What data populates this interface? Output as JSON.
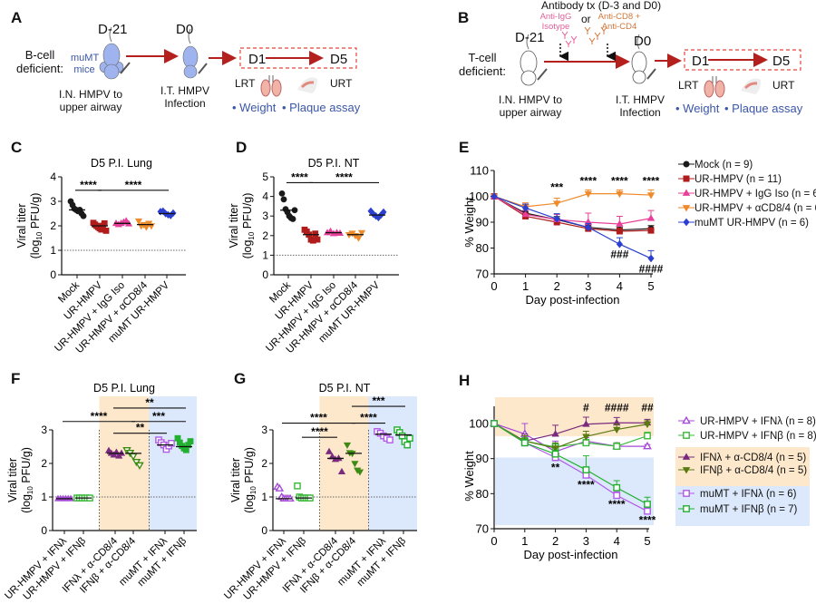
{
  "panel_labels": [
    "A",
    "B",
    "C",
    "D",
    "E",
    "F",
    "G",
    "H"
  ],
  "schematic_a": {
    "group_label_1": "B-cell",
    "group_label_2": "deficient:",
    "mice_label_1": "muMT",
    "mice_label_2": "mice",
    "day_start": "D-21",
    "day_infect": "D0",
    "step1_1": "I.N. HMPV to",
    "step1_2": "upper airway",
    "step2_1": "I.T. HMPV",
    "step2_2": "Infection",
    "window_start": "D1",
    "window_end": "D5",
    "lrt": "LRT",
    "urt": "URT",
    "readout_1": "• Weight",
    "readout_2": "• Plaque assay",
    "mouse_color": "#9fb4ee"
  },
  "schematic_b": {
    "antibody_title": "Antibody tx (D-3 and D0)",
    "iso_1": "Anti-IgG",
    "iso_2": "Isotype",
    "or": "or",
    "cd_1": "Anti-CD8 +",
    "cd_2": "Anti-CD4",
    "group_label_1": "T-cell",
    "group_label_2": "deficient:",
    "day_start": "D-21",
    "day_infect": "D0",
    "step1_1": "I.N. HMPV to",
    "step1_2": "upper airway",
    "step2_1": "I.T. HMPV",
    "step2_2": "Infection",
    "window_start": "D1",
    "window_end": "D5",
    "lrt": "LRT",
    "urt": "URT",
    "readout_1": "• Weight",
    "readout_2": "• Plaque assay",
    "iso_color": "#e0609a",
    "cd_color": "#d2773a"
  },
  "chart_data": [
    {
      "panel": "C",
      "type": "scatter",
      "title": "D5 P.I. Lung",
      "ylabel": "Viral titer",
      "ylabel_unit": [
        "(log",
        "10",
        " PFU/g)"
      ],
      "ylim": [
        0,
        4
      ],
      "yticks": [
        "0",
        "1",
        "2",
        "3",
        "4"
      ],
      "limit_of_detection": 1,
      "categories": [
        "Mock",
        "UR-HMPV",
        "UR-HMPV + IgG Iso",
        "UR-HMPV + αCD8/4",
        "muMT UR-HMPV"
      ],
      "groups": [
        {
          "color": "#1a1a1a",
          "marker": "circle",
          "filled": true,
          "points": [
            3.0,
            2.85,
            2.7,
            2.65,
            2.6,
            2.65,
            2.5,
            2.4
          ],
          "median": 2.65
        },
        {
          "color": "#b01c1c",
          "marker": "square",
          "filled": true,
          "points": [
            2.12,
            2.05,
            2.0,
            1.95,
            1.9,
            1.85,
            2.0,
            2.1,
            1.8
          ],
          "median": 2.0
        },
        {
          "color": "#e8409a",
          "marker": "triangle",
          "filled": true,
          "points": [
            2.1,
            2.05,
            2.1,
            2.15,
            2.2,
            2.08
          ],
          "median": 2.1
        },
        {
          "color": "#ee8a2a",
          "marker": "triangle-down",
          "filled": true,
          "points": [
            2.2,
            2.0,
            2.05,
            1.95,
            2.1,
            2.0
          ],
          "median": 2.05
        },
        {
          "color": "#2b3fd0",
          "marker": "diamond",
          "filled": true,
          "points": [
            2.58,
            2.6,
            2.5,
            2.45,
            2.42,
            2.52
          ],
          "median": 2.5
        }
      ],
      "significance": [
        {
          "from": 0,
          "to": 1,
          "y": 3.45,
          "label": "****"
        },
        {
          "from": 1,
          "to": 4,
          "y": 3.45,
          "label": "****"
        }
      ]
    },
    {
      "panel": "D",
      "type": "scatter",
      "title": "D5 P.I. NT",
      "ylabel": "Viral titer",
      "ylabel_unit": [
        "(log",
        "10",
        " PFU/g)"
      ],
      "ylim": [
        0,
        5
      ],
      "yticks": [
        "0",
        "1",
        "2",
        "3",
        "4",
        "5"
      ],
      "limit_of_detection": 1,
      "categories": [
        "Mock",
        "UR-HMPV",
        "UR-HMPV + IgG Iso",
        "UR-HMPV + αCD8/4",
        "muMT UR-HMPV"
      ],
      "groups": [
        {
          "color": "#1a1a1a",
          "marker": "circle",
          "filled": true,
          "points": [
            4.15,
            3.85,
            3.35,
            3.2,
            3.0,
            2.9,
            2.85,
            3.3
          ],
          "median": 3.3
        },
        {
          "color": "#b01c1c",
          "marker": "square",
          "filled": true,
          "points": [
            2.3,
            2.2,
            2.05,
            1.8,
            1.75,
            2.1,
            1.8
          ],
          "median": 2.05
        },
        {
          "color": "#e8409a",
          "marker": "triangle",
          "filled": true,
          "points": [
            2.15,
            2.22,
            2.1,
            2.15,
            2.12
          ],
          "median": 2.15
        },
        {
          "color": "#ee8a2a",
          "marker": "triangle-down",
          "filled": true,
          "points": [
            2.05,
            2.12,
            2.0,
            1.88,
            2.15
          ],
          "median": 2.05
        },
        {
          "color": "#2b3fd0",
          "marker": "diamond",
          "filled": true,
          "points": [
            3.25,
            3.1,
            3.0,
            2.92,
            3.05,
            3.2
          ],
          "median": 3.05
        }
      ],
      "significance": [
        {
          "from": 0,
          "to": 1,
          "y": 4.7,
          "label": "****"
        },
        {
          "from": 1,
          "to": 4,
          "y": 4.7,
          "label": "****"
        }
      ]
    },
    {
      "panel": "E",
      "type": "line",
      "xlabel": "Day post-infection",
      "ylabel": "% Weight",
      "x": [
        0,
        1,
        2,
        3,
        4,
        5
      ],
      "xticks": [
        "0",
        "1",
        "2",
        "3",
        "4",
        "5"
      ],
      "ylim": [
        70,
        110
      ],
      "yticks": [
        "70",
        "80",
        "90",
        "100",
        "110"
      ],
      "series": [
        {
          "label": "Mock (n = 9)",
          "color": "#1a1a1a",
          "marker": "circle",
          "filled": true,
          "values": [
            100,
            93.5,
            91,
            88,
            87,
            87.5
          ],
          "errors": [
            0,
            1,
            1.2,
            1,
            1,
            1.2
          ]
        },
        {
          "label": "UR-HMPV (n = 11)",
          "color": "#b01c1c",
          "marker": "square",
          "filled": true,
          "values": [
            100,
            92.3,
            90,
            87.5,
            86.5,
            86.8
          ],
          "errors": [
            0,
            1.2,
            1.5,
            1,
            1.2,
            1
          ]
        },
        {
          "label": "UR-HMPV + IgG Iso (n = 6)",
          "color": "#e8409a",
          "marker": "triangle",
          "filled": true,
          "values": [
            100,
            93,
            91,
            90,
            89.3,
            91.5
          ],
          "errors": [
            0,
            1.5,
            2,
            3.5,
            3,
            3
          ]
        },
        {
          "label": "UR-HMPV + αCD8/4 (n = 6)",
          "color": "#ee8a2a",
          "marker": "triangle-down",
          "filled": true,
          "values": [
            100,
            96,
            97.3,
            101,
            101,
            100.5
          ],
          "errors": [
            0,
            1.5,
            2,
            1.5,
            1.5,
            2
          ]
        },
        {
          "label": "muMT UR-HMPV (n = 6)",
          "color": "#2b3fd0",
          "marker": "diamond",
          "filled": true,
          "values": [
            100,
            95.5,
            91.3,
            88,
            81.5,
            76
          ],
          "errors": [
            0,
            1.5,
            2,
            1.5,
            2.5,
            3
          ]
        }
      ],
      "annotations": [
        {
          "x": 2,
          "y": 103.5,
          "text": "***"
        },
        {
          "x": 3,
          "y": 106,
          "text": "****"
        },
        {
          "x": 4,
          "y": 106,
          "text": "****"
        },
        {
          "x": 5,
          "y": 106,
          "text": "****"
        },
        {
          "x": 4,
          "y": 77.5,
          "text": "###"
        },
        {
          "x": 5,
          "y": 72,
          "text": "####"
        }
      ],
      "legend": "right"
    },
    {
      "panel": "F",
      "type": "scatter",
      "title": "D5 P.I. Lung",
      "ylabel": "Viral titer",
      "ylabel_unit": [
        "(log",
        "10",
        " PFU/g)"
      ],
      "ylim": [
        0,
        3
      ],
      "yticks": [
        "0",
        "1",
        "2",
        "3"
      ],
      "limit_of_detection": 1,
      "categories": [
        "UR-HMPV + IFNλ",
        "UR-HMPV + IFNβ",
        "IFNλ + α-CD8/4",
        "IFNβ + α-CD8/4",
        "muMT + IFNλ",
        "muMT + IFNβ"
      ],
      "shading": [
        {
          "from": 2,
          "to": 3,
          "color": "#fde8cc"
        },
        {
          "from": 4,
          "to": 5,
          "color": "#dce8fb"
        }
      ],
      "groups": [
        {
          "color": "#a64bd8",
          "marker": "triangle",
          "filled": true,
          "points": [
            0.95,
            0.95,
            0.95,
            0.95,
            0.95,
            0.95
          ],
          "median": 0.95
        },
        {
          "color": "#3cb83c",
          "marker": "square",
          "filled": false,
          "points": [
            0.97,
            0.97,
            0.97,
            0.97,
            0.97,
            0.97
          ],
          "median": 0.97
        },
        {
          "color": "#7a2a7e",
          "marker": "triangle",
          "filled": true,
          "points": [
            2.38,
            2.3,
            2.25,
            2.33,
            2.22,
            2.3
          ],
          "median": 2.3
        },
        {
          "color": "#3f8a12",
          "marker": "triangle-down",
          "filled": false,
          "points": [
            2.4,
            2.32,
            2.22,
            2.05,
            1.95
          ],
          "median": 2.3
        },
        {
          "color": "#b05ae8",
          "marker": "square",
          "filled": false,
          "points": [
            2.7,
            2.62,
            2.55,
            2.42,
            2.52,
            2.6
          ],
          "median": 2.55
        },
        {
          "color": "#22b030",
          "marker": "square",
          "filled": true,
          "points": [
            2.75,
            2.62,
            2.52,
            2.45,
            2.4,
            2.55,
            2.66
          ],
          "median": 2.5
        }
      ],
      "significance": [
        {
          "from": 2,
          "to": 5,
          "y": 3.65,
          "label": "**"
        },
        {
          "from": 0,
          "to": 3,
          "y": 3.25,
          "label": "****"
        },
        {
          "from": 3,
          "to": 5,
          "y": 3.25,
          "label": "***"
        },
        {
          "from": 2,
          "to": 4,
          "y": 2.9,
          "label": "**"
        }
      ]
    },
    {
      "panel": "G",
      "type": "scatter",
      "title": "D5 P.I. NT",
      "ylabel": "Viral titer",
      "ylabel_unit": [
        "(log",
        "10",
        " PFU/g)"
      ],
      "ylim": [
        0,
        3
      ],
      "yticks": [
        "0",
        "1",
        "2",
        "3"
      ],
      "limit_of_detection": 1,
      "categories": [
        "UR-HMPV + IFNλ",
        "UR-HMPV + IFNβ",
        "IFNλ + α-CD8/4",
        "IFNβ + α-CD8/4",
        "muMT + IFNλ",
        "muMT + IFNβ"
      ],
      "shading": [
        {
          "from": 2,
          "to": 3,
          "color": "#fde8cc"
        },
        {
          "from": 4,
          "to": 5,
          "color": "#dce8fb"
        }
      ],
      "groups": [
        {
          "color": "#a64bd8",
          "marker": "triangle",
          "filled": false,
          "points": [
            1.3,
            1.25,
            1.0,
            0.95,
            0.95,
            0.95,
            0.95
          ],
          "median": 0.95
        },
        {
          "color": "#3cb83c",
          "marker": "square",
          "filled": false,
          "points": [
            1.33,
            1.0,
            0.97,
            0.97,
            0.97,
            0.97,
            0.97
          ],
          "median": 0.97
        },
        {
          "color": "#7a2a7e",
          "marker": "triangle",
          "filled": true,
          "points": [
            2.35,
            2.2,
            2.12,
            2.15,
            1.75
          ],
          "median": 2.15
        },
        {
          "color": "#3f8a12",
          "marker": "triangle-down",
          "filled": true,
          "points": [
            2.55,
            2.32,
            2.3,
            2.0,
            1.8,
            1.75
          ],
          "median": 2.3
        },
        {
          "color": "#b05ae8",
          "marker": "square",
          "filled": false,
          "points": [
            2.95,
            2.9,
            2.82,
            2.75,
            2.7
          ],
          "median": 2.87
        },
        {
          "color": "#22b030",
          "marker": "square",
          "filled": false,
          "points": [
            3.0,
            2.92,
            2.82,
            2.65,
            2.55,
            2.75
          ],
          "median": 2.85
        }
      ],
      "significance": [
        {
          "from": 3,
          "to": 5,
          "y": 3.7,
          "label": "***"
        },
        {
          "from": 0,
          "to": 3,
          "y": 3.2,
          "label": "****"
        },
        {
          "from": 3,
          "to": 4,
          "y": 3.2,
          "label": "****"
        },
        {
          "from": 1,
          "to": 2,
          "y": 2.78,
          "label": "****"
        }
      ]
    },
    {
      "panel": "H",
      "type": "line",
      "xlabel": "Day post-infection",
      "ylabel": "% Weight",
      "x": [
        0,
        1,
        2,
        3,
        4,
        5
      ],
      "xticks": [
        "0",
        "1",
        "2",
        "3",
        "4",
        "5"
      ],
      "ylim": [
        70,
        100
      ],
      "yticks": [
        "70",
        "80",
        "90",
        "100"
      ],
      "shading": [
        {
          "y": [
            96.4,
            107.5
          ],
          "color": "#fde8cc"
        },
        {
          "y": [
            71,
            90.3
          ],
          "color": "#dce8fb"
        }
      ],
      "series": [
        {
          "label": "UR-HMPV + IFNλ (n = 8)",
          "color": "#a64bd8",
          "marker": "triangle",
          "filled": false,
          "values": [
            100,
            97,
            92,
            95,
            93.5,
            93.5
          ],
          "errors": [
            0,
            3,
            3,
            1,
            1,
            0.5
          ]
        },
        {
          "label": "UR-HMPV + IFNβ (n = 8)",
          "color": "#3cb83c",
          "marker": "square",
          "filled": false,
          "values": [
            100,
            95,
            93.3,
            94.5,
            93.5,
            96.5
          ],
          "errors": [
            0,
            1,
            1,
            1,
            1,
            1
          ]
        },
        {
          "label": "IFNλ + α-CD8/4 (n = 5)",
          "color": "#7a2a7e",
          "marker": "triangle",
          "filled": true,
          "values": [
            100,
            95,
            97,
            99.8,
            100.2,
            100.2
          ],
          "errors": [
            0,
            2,
            2.5,
            2,
            1.5,
            1
          ]
        },
        {
          "label": "IFNβ + α-CD8/4 (n = 5)",
          "color": "#5a7a12",
          "marker": "triangle-down",
          "filled": true,
          "values": [
            100,
            95,
            93,
            96.3,
            98.3,
            99.8
          ],
          "errors": [
            0,
            1.5,
            1.5,
            1.5,
            1.5,
            1
          ]
        },
        {
          "label": "muMT + IFNλ (n = 6)",
          "color": "#b05ae8",
          "marker": "square",
          "filled": false,
          "values": [
            100,
            94.5,
            90.3,
            85.3,
            79.5,
            75
          ],
          "errors": [
            0,
            0.8,
            0.8,
            1,
            1,
            1
          ]
        },
        {
          "label": "muMT + IFNβ (n = 7)",
          "color": "#22b030",
          "marker": "square",
          "filled": false,
          "values": [
            100,
            94.5,
            91.3,
            86.8,
            81.7,
            77
          ],
          "errors": [
            0,
            1,
            1,
            4,
            2,
            2
          ]
        }
      ],
      "legend_groups": [
        {
          "series": [
            0,
            1
          ],
          "color": "#ffffff"
        },
        {
          "series": [
            2,
            3
          ],
          "color": "#fde8cc"
        },
        {
          "series": [
            4,
            5
          ],
          "color": "#dce8fb"
        }
      ],
      "annotations": [
        {
          "x": 3,
          "y": 104.5,
          "text": "#"
        },
        {
          "x": 4,
          "y": 104.5,
          "text": "####"
        },
        {
          "x": 5,
          "y": 104.5,
          "text": "##"
        },
        {
          "x": 2,
          "y": 87.5,
          "text": "**"
        },
        {
          "x": 3,
          "y": 82.5,
          "text": "****"
        },
        {
          "x": 4,
          "y": 77,
          "text": "****"
        },
        {
          "x": 5,
          "y": 72.5,
          "text": "****"
        }
      ],
      "legend": "right"
    }
  ]
}
